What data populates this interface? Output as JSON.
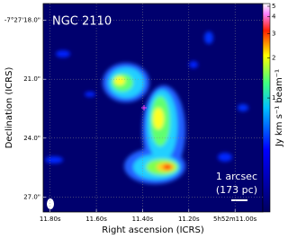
{
  "chart_data": {
    "type": "image",
    "title": "NGC 2110",
    "xlabel": "Right ascension (ICRS)",
    "ylabel": "Declination (ICRS)",
    "xlim": [
      11.83,
      10.88
    ],
    "xticks": [
      {
        "value": 11.8,
        "label": "11.80s"
      },
      {
        "value": 11.6,
        "label": "11.60s"
      },
      {
        "value": 11.4,
        "label": "11.40s"
      },
      {
        "value": 11.2,
        "label": "11.20s"
      },
      {
        "value": 11.0,
        "label": "5h52m11.00s"
      }
    ],
    "ylim": [
      27.76,
      17.15
    ],
    "yticks": [
      {
        "value": 18,
        "label": "-7°27'18.0\""
      },
      {
        "value": 21,
        "label": "21.0\""
      },
      {
        "value": 24,
        "label": "24.0\""
      },
      {
        "value": 27,
        "label": "27.0\""
      }
    ],
    "grid": true,
    "colorbar": {
      "label": "Jy km s⁻¹ beam⁻¹",
      "lim": [
        0,
        5
      ],
      "ticks": [
        1,
        2,
        3,
        4,
        5
      ]
    },
    "annotations": [
      "1 arcsec",
      "(173 pc)"
    ]
  }
}
